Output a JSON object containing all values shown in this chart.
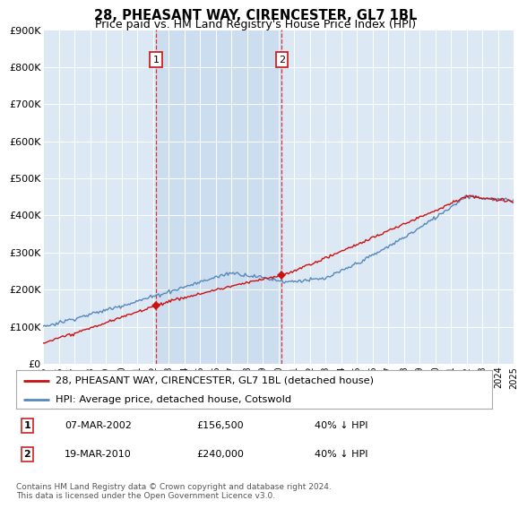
{
  "title": "28, PHEASANT WAY, CIRENCESTER, GL7 1BL",
  "subtitle": "Price paid vs. HM Land Registry's House Price Index (HPI)",
  "background_color": "#ffffff",
  "plot_bg_color": "#dce9f5",
  "grid_color": "#c8d8e8",
  "ylim": [
    0,
    900000
  ],
  "yticks": [
    0,
    100000,
    200000,
    300000,
    400000,
    500000,
    600000,
    700000,
    800000,
    900000
  ],
  "ytick_labels": [
    "£0",
    "£100K",
    "£200K",
    "£300K",
    "£400K",
    "£500K",
    "£600K",
    "£700K",
    "£800K",
    "£900K"
  ],
  "year_start": 1995,
  "year_end": 2025,
  "sale1_year": 2002.18,
  "sale1_price": 156500,
  "sale2_year": 2010.21,
  "sale2_price": 240000,
  "vline_color": "#dd2222",
  "hpi_color": "#5588bb",
  "price_color": "#cc1111",
  "shade_color": "#ccddf0",
  "legend_label_price": "28, PHEASANT WAY, CIRENCESTER, GL7 1BL (detached house)",
  "legend_label_hpi": "HPI: Average price, detached house, Cotswold",
  "table_row1": [
    "1",
    "07-MAR-2002",
    "£156,500",
    "40% ↓ HPI"
  ],
  "table_row2": [
    "2",
    "19-MAR-2010",
    "£240,000",
    "40% ↓ HPI"
  ],
  "footer": "Contains HM Land Registry data © Crown copyright and database right 2024.\nThis data is licensed under the Open Government Licence v3.0."
}
